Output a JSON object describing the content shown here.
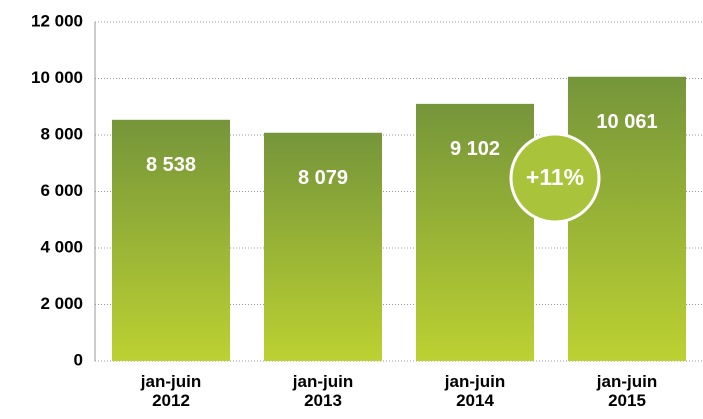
{
  "chart_data": {
    "type": "bar",
    "categories": [
      "jan-juin\n2012",
      "jan-juin\n2013",
      "jan-juin\n2014",
      "jan-juin\n2015"
    ],
    "values": [
      8538,
      8079,
      9102,
      10061
    ],
    "value_labels": [
      "8 538",
      "8 079",
      "9 102",
      "10 061"
    ],
    "color": "#8fae35",
    "ylim": [
      0,
      12000
    ],
    "yticks": [
      0,
      {
        "value": 2000,
        "label": "2 000"
      },
      {
        "value": 4000,
        "label": "4 000"
      },
      {
        "value": 6000,
        "label": "6 000"
      },
      {
        "value": 8000,
        "label": "8 000"
      },
      {
        "value": 10000,
        "label": "10 000"
      },
      {
        "value": 12000,
        "label": "12 000"
      }
    ],
    "grid": true,
    "annotations": [
      "+11%"
    ]
  }
}
